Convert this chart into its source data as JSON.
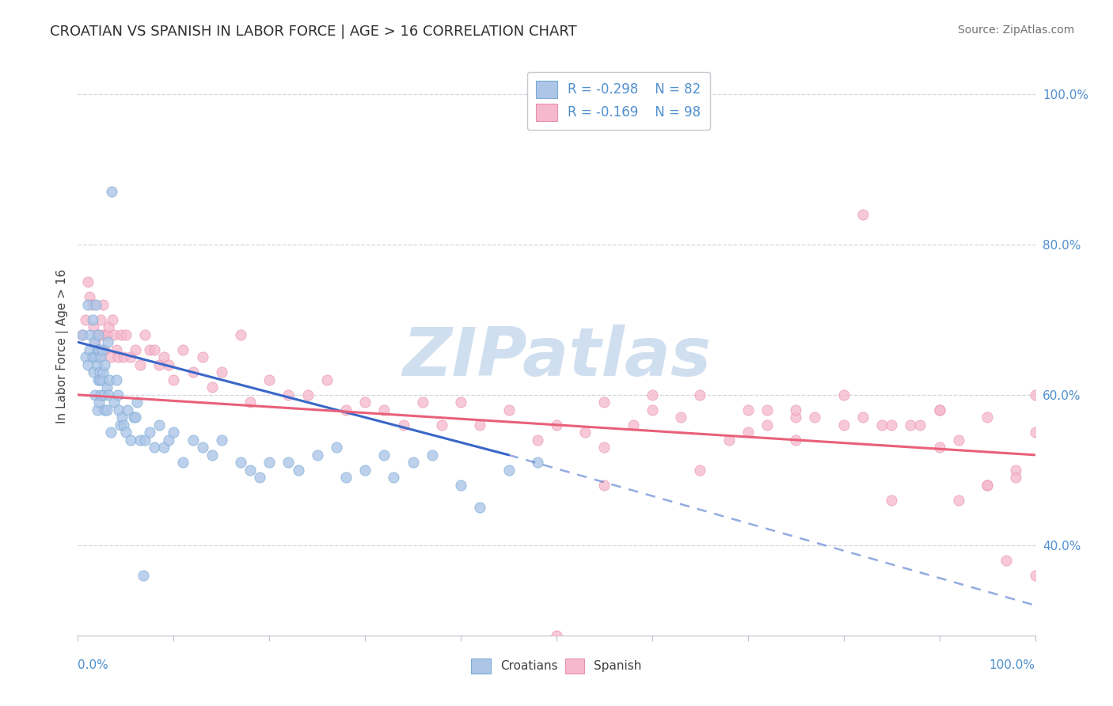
{
  "title": "CROATIAN VS SPANISH IN LABOR FORCE | AGE > 16 CORRELATION CHART",
  "source_text": "Source: ZipAtlas.com",
  "ylabel": "In Labor Force | Age > 16",
  "xlim": [
    0.0,
    1.0
  ],
  "ylim": [
    0.28,
    1.05
  ],
  "croatian_R": -0.298,
  "croatian_N": 82,
  "spanish_R": -0.169,
  "spanish_N": 98,
  "croatian_color": "#adc6e8",
  "spanish_color": "#f5b8cc",
  "croatian_edge": "#7aaad4",
  "spanish_edge": "#e890ae",
  "croatian_line_color": "#3a67c8",
  "spanish_line_color": "#e8607a",
  "background_color": "#ffffff",
  "grid_color": "#d5d5e0",
  "watermark_color": "#d0dff0",
  "ytick_color": "#5090d0",
  "xtick_color": "#5090d0",
  "croatian_x": [
    0.005,
    0.008,
    0.01,
    0.01,
    0.012,
    0.013,
    0.015,
    0.015,
    0.016,
    0.017,
    0.018,
    0.018,
    0.019,
    0.02,
    0.02,
    0.02,
    0.021,
    0.021,
    0.022,
    0.022,
    0.023,
    0.023,
    0.024,
    0.024,
    0.025,
    0.025,
    0.026,
    0.027,
    0.028,
    0.028,
    0.03,
    0.03,
    0.031,
    0.032,
    0.033,
    0.034,
    0.035,
    0.038,
    0.04,
    0.042,
    0.043,
    0.044,
    0.046,
    0.048,
    0.05,
    0.052,
    0.055,
    0.058,
    0.06,
    0.062,
    0.065,
    0.068,
    0.07,
    0.075,
    0.08,
    0.085,
    0.09,
    0.095,
    0.1,
    0.11,
    0.12,
    0.13,
    0.14,
    0.15,
    0.17,
    0.18,
    0.19,
    0.2,
    0.22,
    0.23,
    0.25,
    0.27,
    0.28,
    0.3,
    0.32,
    0.33,
    0.35,
    0.37,
    0.4,
    0.42,
    0.45,
    0.48
  ],
  "croatian_y": [
    0.68,
    0.65,
    0.64,
    0.72,
    0.66,
    0.68,
    0.7,
    0.65,
    0.63,
    0.67,
    0.65,
    0.6,
    0.72,
    0.66,
    0.64,
    0.58,
    0.68,
    0.62,
    0.66,
    0.59,
    0.63,
    0.62,
    0.65,
    0.6,
    0.66,
    0.62,
    0.63,
    0.6,
    0.64,
    0.58,
    0.61,
    0.58,
    0.67,
    0.6,
    0.62,
    0.55,
    0.87,
    0.59,
    0.62,
    0.6,
    0.58,
    0.56,
    0.57,
    0.56,
    0.55,
    0.58,
    0.54,
    0.57,
    0.57,
    0.59,
    0.54,
    0.36,
    0.54,
    0.55,
    0.53,
    0.56,
    0.53,
    0.54,
    0.55,
    0.51,
    0.54,
    0.53,
    0.52,
    0.54,
    0.51,
    0.5,
    0.49,
    0.51,
    0.51,
    0.5,
    0.52,
    0.53,
    0.49,
    0.5,
    0.52,
    0.49,
    0.51,
    0.52,
    0.48,
    0.45,
    0.5,
    0.51
  ],
  "spanish_x": [
    0.005,
    0.008,
    0.01,
    0.012,
    0.015,
    0.016,
    0.018,
    0.02,
    0.022,
    0.024,
    0.025,
    0.026,
    0.028,
    0.03,
    0.032,
    0.034,
    0.036,
    0.038,
    0.04,
    0.042,
    0.045,
    0.048,
    0.05,
    0.055,
    0.06,
    0.065,
    0.07,
    0.075,
    0.08,
    0.085,
    0.09,
    0.095,
    0.1,
    0.11,
    0.12,
    0.13,
    0.14,
    0.15,
    0.17,
    0.18,
    0.2,
    0.22,
    0.24,
    0.26,
    0.28,
    0.3,
    0.32,
    0.34,
    0.36,
    0.38,
    0.4,
    0.42,
    0.45,
    0.48,
    0.5,
    0.53,
    0.55,
    0.58,
    0.6,
    0.63,
    0.65,
    0.68,
    0.7,
    0.72,
    0.75,
    0.77,
    0.8,
    0.82,
    0.84,
    0.87,
    0.9,
    0.92,
    0.95,
    0.5,
    0.55,
    0.6,
    0.72,
    0.75,
    0.82,
    0.88,
    0.9,
    0.95,
    0.98,
    1.0,
    0.7,
    0.8,
    0.85,
    0.9,
    0.95,
    0.98,
    1.0,
    0.55,
    0.65,
    0.97,
    0.75,
    0.85,
    0.92,
    1.0
  ],
  "spanish_y": [
    0.68,
    0.7,
    0.75,
    0.73,
    0.72,
    0.69,
    0.67,
    0.68,
    0.65,
    0.7,
    0.68,
    0.72,
    0.66,
    0.68,
    0.69,
    0.65,
    0.7,
    0.68,
    0.66,
    0.65,
    0.68,
    0.65,
    0.68,
    0.65,
    0.66,
    0.64,
    0.68,
    0.66,
    0.66,
    0.64,
    0.65,
    0.64,
    0.62,
    0.66,
    0.63,
    0.65,
    0.61,
    0.63,
    0.68,
    0.59,
    0.62,
    0.6,
    0.6,
    0.62,
    0.58,
    0.59,
    0.58,
    0.56,
    0.59,
    0.56,
    0.59,
    0.56,
    0.58,
    0.54,
    0.28,
    0.55,
    0.59,
    0.56,
    0.58,
    0.57,
    0.6,
    0.54,
    0.58,
    0.58,
    0.57,
    0.57,
    0.6,
    0.57,
    0.56,
    0.56,
    0.58,
    0.54,
    0.57,
    0.56,
    0.53,
    0.6,
    0.56,
    0.58,
    0.84,
    0.56,
    0.58,
    0.48,
    0.5,
    0.55,
    0.55,
    0.56,
    0.56,
    0.53,
    0.48,
    0.49,
    0.6,
    0.48,
    0.5,
    0.38,
    0.54,
    0.46,
    0.46,
    0.36
  ],
  "croatian_line_x0": 0.0,
  "croatian_line_y0": 0.67,
  "croatian_line_x1": 0.45,
  "croatian_line_y1": 0.52,
  "croatian_line_xdash_end": 1.0,
  "croatian_line_ydash_end": 0.32,
  "spanish_line_x0": 0.0,
  "spanish_line_y0": 0.6,
  "spanish_line_x1": 1.0,
  "spanish_line_y1": 0.52
}
